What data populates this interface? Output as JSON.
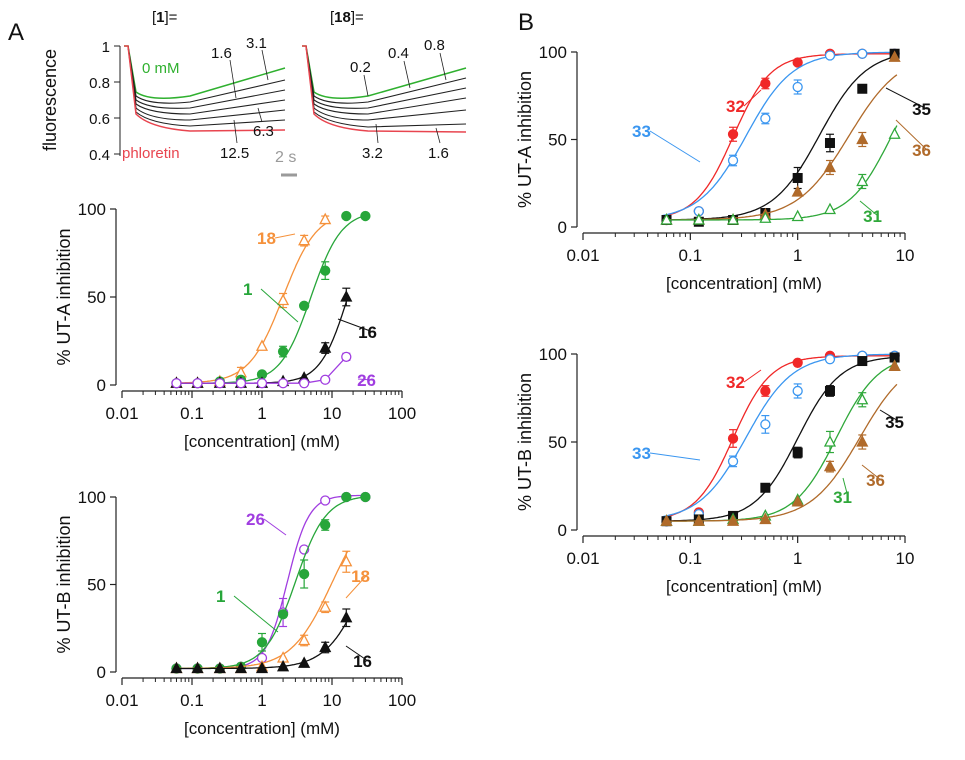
{
  "panel_letters": [
    "A",
    "B"
  ],
  "trace_panel": {
    "ylabel": "fluorescence",
    "yticks": [
      "1",
      "0.8",
      "0.6",
      "0.4"
    ],
    "left_header": "[1]=",
    "left_header_bold": "1",
    "right_header": "[18]=",
    "right_header_bold": "18",
    "scale_bar": "2 s",
    "left_labels": {
      "zero": "0 mM",
      "phloretin": "phloretin",
      "c1": "1.6",
      "c2": "3.1",
      "c3": "6.3",
      "c4": "12.5"
    },
    "right_labels": {
      "c1": "0.2",
      "c2": "0.4",
      "c3": "0.8",
      "c4": "3.2",
      "c5": "1.6"
    },
    "colors": {
      "control": "#2fb02f",
      "phloretin": "#e8454f",
      "traces": "#222222"
    }
  },
  "chart_data": [
    {
      "type": "scatter",
      "panel": "A",
      "ylabel": "% UT-A inhibition",
      "xlabel": "[concentration] (mM)",
      "x_scale": "log",
      "xlim": [
        0.01,
        100
      ],
      "ylim": [
        0,
        100
      ],
      "xticks": [
        "0.01",
        "0.1",
        "1",
        "10",
        "100"
      ],
      "yticks": [
        "0",
        "50",
        "100"
      ],
      "series": [
        {
          "name": "18",
          "color": "#f5913b",
          "marker": "triangle-open",
          "x": [
            0.06,
            0.12,
            0.25,
            0.5,
            1,
            2,
            4,
            8
          ],
          "y": [
            1,
            1,
            2,
            7,
            22,
            48,
            82,
            94
          ],
          "err": [
            0,
            0,
            0,
            3,
            0,
            4,
            3,
            2
          ],
          "fit": {
            "ic50": 2.0,
            "hill": 1.8,
            "top": 99
          }
        },
        {
          "name": "1",
          "color": "#27a63a",
          "marker": "circle-filled",
          "x": [
            0.06,
            0.12,
            0.25,
            0.5,
            1,
            2,
            4,
            8,
            16,
            30
          ],
          "y": [
            1,
            1,
            2,
            3,
            6,
            19,
            45,
            65,
            96,
            96
          ],
          "err": [
            0,
            0,
            0,
            0,
            0,
            3,
            0,
            5,
            0,
            0
          ],
          "fit": {
            "ic50": 5.0,
            "hill": 2.0,
            "top": 99
          }
        },
        {
          "name": "16",
          "color": "#111111",
          "marker": "triangle-filled",
          "x": [
            0.06,
            0.12,
            0.25,
            0.5,
            1,
            2,
            4,
            8,
            16
          ],
          "y": [
            1,
            1,
            1,
            1,
            1,
            2,
            4,
            21,
            50
          ],
          "err": [
            0,
            0,
            0,
            0,
            0,
            0,
            0,
            3,
            5
          ],
          "fit": {
            "ic50": 17,
            "hill": 2.2,
            "top": 100
          }
        },
        {
          "name": "26",
          "color": "#a03de0",
          "marker": "circle-open",
          "x": [
            0.06,
            0.12,
            0.25,
            0.5,
            1,
            2,
            4,
            8,
            16
          ],
          "y": [
            1,
            1,
            1,
            1,
            1,
            1,
            1,
            3,
            16
          ],
          "err": [
            0,
            0,
            0,
            0,
            0,
            0,
            0,
            0,
            2
          ],
          "fit": null
        }
      ]
    },
    {
      "type": "scatter",
      "panel": "A",
      "ylabel": "% UT-B inhibition",
      "xlabel": "[concentration] (mM)",
      "x_scale": "log",
      "xlim": [
        0.01,
        100
      ],
      "ylim": [
        0,
        100
      ],
      "xticks": [
        "0.01",
        "0.1",
        "1",
        "10",
        "100"
      ],
      "yticks": [
        "0",
        "50",
        "100"
      ],
      "series": [
        {
          "name": "26",
          "color": "#a03de0",
          "marker": "circle-open",
          "x": [
            0.06,
            0.12,
            0.25,
            0.5,
            1,
            2,
            4,
            8,
            16,
            30
          ],
          "y": [
            2,
            2,
            2,
            3,
            8,
            34,
            70,
            98,
            100,
            100
          ],
          "err": [
            0,
            0,
            0,
            0,
            0,
            8,
            0,
            0,
            0,
            0
          ],
          "fit": {
            "ic50": 2.3,
            "hill": 2.8,
            "top": 101
          }
        },
        {
          "name": "1",
          "color": "#27a63a",
          "marker": "circle-filled",
          "x": [
            0.06,
            0.12,
            0.25,
            0.5,
            1,
            2,
            4,
            8,
            16,
            30
          ],
          "y": [
            2,
            2,
            2,
            3,
            17,
            33,
            56,
            84,
            100,
            100
          ],
          "err": [
            0,
            0,
            0,
            0,
            5,
            0,
            8,
            3,
            0,
            0
          ],
          "fit": {
            "ic50": 3.0,
            "hill": 2.0,
            "top": 101
          }
        },
        {
          "name": "18",
          "color": "#f5913b",
          "marker": "triangle-open",
          "x": [
            0.06,
            0.12,
            0.25,
            0.5,
            1,
            2,
            4,
            8,
            16
          ],
          "y": [
            2,
            2,
            2,
            2,
            3,
            8,
            18,
            37,
            63
          ],
          "err": [
            0,
            0,
            0,
            0,
            0,
            0,
            3,
            3,
            6
          ],
          "fit": {
            "ic50": 10,
            "hill": 1.5,
            "top": 100
          }
        },
        {
          "name": "16",
          "color": "#111111",
          "marker": "triangle-filled",
          "x": [
            0.06,
            0.12,
            0.25,
            0.5,
            1,
            2,
            4,
            8,
            16
          ],
          "y": [
            2,
            2,
            2,
            2,
            2,
            3,
            5,
            14,
            31
          ],
          "err": [
            0,
            0,
            0,
            0,
            0,
            0,
            0,
            3,
            5
          ],
          "fit": {
            "ic50": 30,
            "hill": 1.6,
            "top": 100
          }
        }
      ]
    },
    {
      "type": "scatter",
      "panel": "B",
      "ylabel": "% UT-A inhibition",
      "xlabel": "[concentration] (mM)",
      "x_scale": "log",
      "xlim": [
        0.01,
        10
      ],
      "ylim": [
        0,
        100
      ],
      "xticks": [
        "0.01",
        "0.1",
        "1",
        "10"
      ],
      "yticks": [
        "0",
        "50",
        "100"
      ],
      "series": [
        {
          "name": "32",
          "color": "#f02828",
          "marker": "circle-filled",
          "x": [
            0.06,
            0.12,
            0.25,
            0.5,
            1,
            2,
            4,
            8
          ],
          "y": [
            4,
            9,
            53,
            82,
            94,
            99,
            99,
            99
          ],
          "err": [
            0,
            0,
            4,
            3,
            0,
            0,
            0,
            0
          ],
          "fit": {
            "ic50": 0.25,
            "hill": 2.5,
            "top": 99
          }
        },
        {
          "name": "33",
          "color": "#3a96f0",
          "marker": "circle-open",
          "x": [
            0.06,
            0.12,
            0.25,
            0.5,
            1,
            2,
            4,
            8
          ],
          "y": [
            4,
            9,
            38,
            62,
            80,
            98,
            99,
            99
          ],
          "err": [
            0,
            0,
            3,
            3,
            4,
            0,
            0,
            0
          ],
          "fit": {
            "ic50": 0.33,
            "hill": 2.0,
            "top": 100
          }
        },
        {
          "name": "35",
          "color": "#111111",
          "marker": "square-filled",
          "x": [
            0.06,
            0.12,
            0.25,
            0.5,
            1,
            2,
            4,
            8
          ],
          "y": [
            4,
            3,
            4,
            8,
            28,
            48,
            79,
            99
          ],
          "err": [
            0,
            0,
            0,
            0,
            6,
            5,
            0,
            0
          ],
          "fit": {
            "ic50": 1.6,
            "hill": 2.0,
            "top": 101
          }
        },
        {
          "name": "36",
          "color": "#b06a2a",
          "marker": "triangle-filled",
          "x": [
            0.06,
            0.12,
            0.25,
            0.5,
            1,
            2,
            4,
            8
          ],
          "y": [
            4,
            4,
            4,
            7,
            20,
            34,
            50,
            97
          ],
          "err": [
            0,
            0,
            0,
            0,
            0,
            4,
            4,
            0
          ],
          "fit": {
            "ic50": 3.0,
            "hill": 1.8,
            "top": 100
          }
        },
        {
          "name": "31",
          "color": "#2fa83a",
          "marker": "triangle-open",
          "x": [
            0.06,
            0.12,
            0.25,
            0.5,
            1,
            2,
            4,
            8
          ],
          "y": [
            4,
            4,
            4,
            5,
            6,
            10,
            26,
            53
          ],
          "err": [
            0,
            0,
            0,
            0,
            0,
            0,
            4,
            0
          ],
          "fit": {
            "ic50": 7.5,
            "hill": 2.2,
            "top": 100
          }
        }
      ]
    },
    {
      "type": "scatter",
      "panel": "B",
      "ylabel": "% UT-B inhibition",
      "xlabel": "[concentration] (mM)",
      "x_scale": "log",
      "xlim": [
        0.01,
        10
      ],
      "ylim": [
        0,
        100
      ],
      "xticks": [
        "0.01",
        "0.1",
        "1",
        "10"
      ],
      "yticks": [
        "0",
        "50",
        "100"
      ],
      "series": [
        {
          "name": "32",
          "color": "#f02828",
          "marker": "circle-filled",
          "x": [
            0.06,
            0.12,
            0.25,
            0.5,
            1,
            2,
            4,
            8
          ],
          "y": [
            5,
            10,
            52,
            79,
            95,
            99,
            99,
            99
          ],
          "err": [
            0,
            0,
            5,
            3,
            0,
            0,
            0,
            0
          ],
          "fit": {
            "ic50": 0.25,
            "hill": 2.5,
            "top": 99
          }
        },
        {
          "name": "33",
          "color": "#3a96f0",
          "marker": "circle-open",
          "x": [
            0.06,
            0.12,
            0.25,
            0.5,
            1,
            2,
            4,
            8
          ],
          "y": [
            5,
            9,
            39,
            60,
            79,
            97,
            99,
            99
          ],
          "err": [
            0,
            0,
            3,
            5,
            4,
            0,
            0,
            0
          ],
          "fit": {
            "ic50": 0.33,
            "hill": 2.0,
            "top": 100
          }
        },
        {
          "name": "35",
          "color": "#111111",
          "marker": "square-filled",
          "x": [
            0.06,
            0.12,
            0.25,
            0.5,
            1,
            2,
            4,
            8
          ],
          "y": [
            5,
            6,
            8,
            24,
            44,
            79,
            96,
            98
          ],
          "err": [
            0,
            0,
            0,
            0,
            3,
            3,
            0,
            0
          ],
          "fit": {
            "ic50": 1.0,
            "hill": 2.2,
            "top": 99
          }
        },
        {
          "name": "31",
          "color": "#2fa83a",
          "marker": "triangle-open",
          "x": [
            0.06,
            0.12,
            0.25,
            0.5,
            1,
            2,
            4,
            8
          ],
          "y": [
            5,
            5,
            6,
            8,
            17,
            50,
            74,
            93
          ],
          "err": [
            0,
            0,
            0,
            0,
            0,
            6,
            4,
            0
          ],
          "fit": {
            "ic50": 2.3,
            "hill": 2.2,
            "top": 100
          }
        },
        {
          "name": "36",
          "color": "#b06a2a",
          "marker": "triangle-filled",
          "x": [
            0.06,
            0.12,
            0.25,
            0.5,
            1,
            2,
            4,
            8
          ],
          "y": [
            5,
            5,
            5,
            6,
            16,
            36,
            50,
            93
          ],
          "err": [
            0,
            0,
            0,
            0,
            0,
            3,
            4,
            0
          ],
          "fit": {
            "ic50": 3.8,
            "hill": 1.9,
            "top": 100
          }
        }
      ]
    }
  ]
}
